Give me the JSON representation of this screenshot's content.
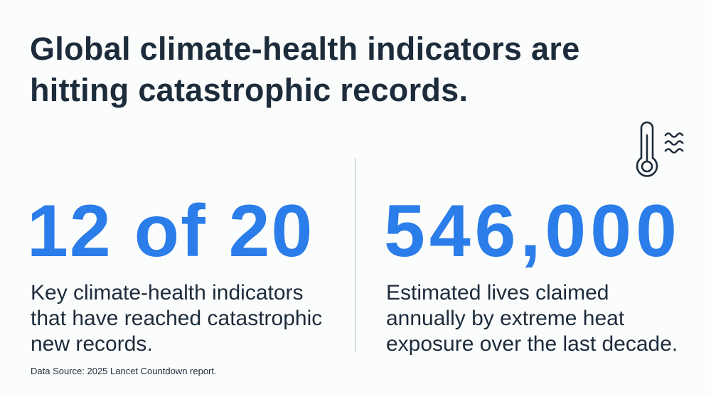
{
  "title": "Global climate-health indicators are hitting catastrophic records.",
  "stats": [
    {
      "value": "12 of 20",
      "description": "Key climate-health indicators that have reached catastrophic new records."
    },
    {
      "value": "546,000",
      "description": "Estimated lives claimed annually by extreme heat exposure over the last decade."
    }
  ],
  "source": "Data Source: 2025 Lancet Countdown report.",
  "icons": {
    "heat": "thermometer-heat-waves-icon"
  },
  "colors": {
    "accent": "#2b7de9",
    "text": "#1d2c3b",
    "background": "#fbfcfc"
  }
}
